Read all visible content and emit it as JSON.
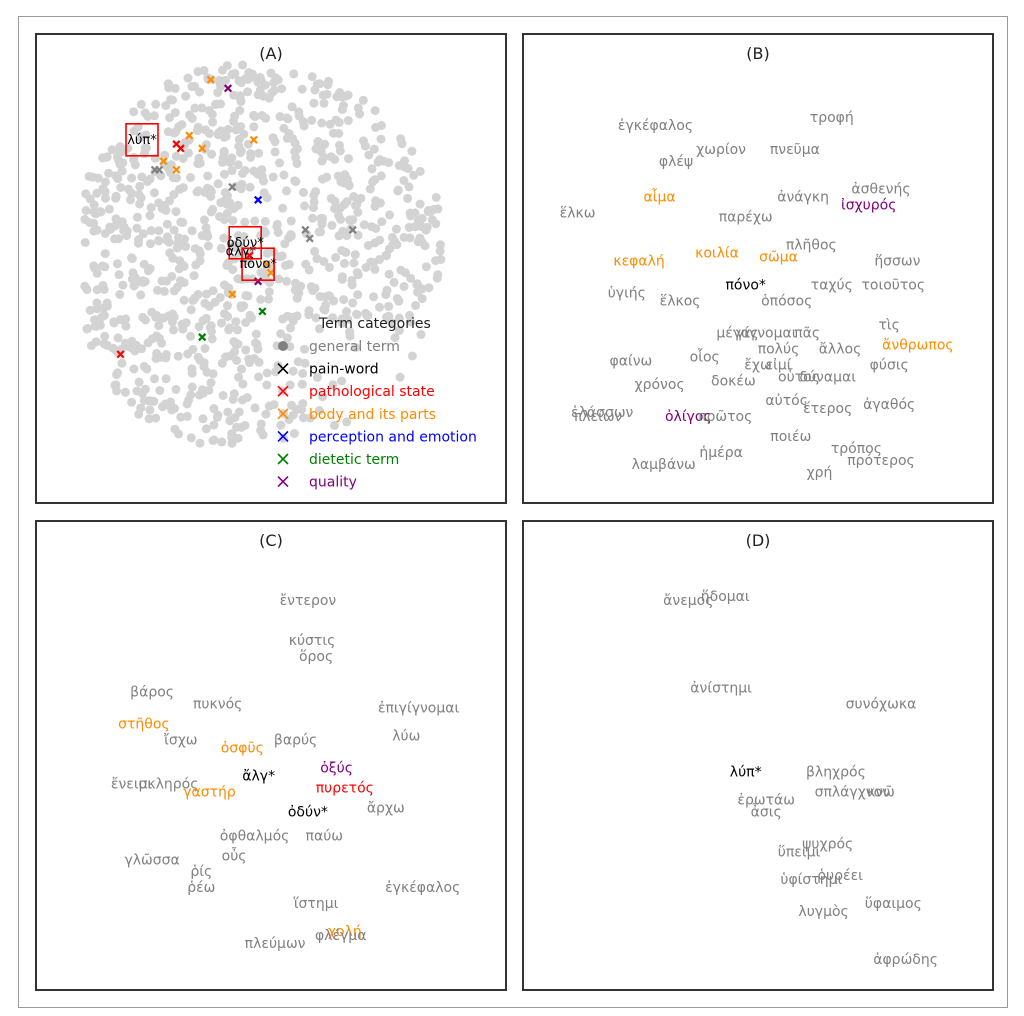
{
  "colors": {
    "general": "#808080",
    "pain": "#000000",
    "pathological": "#ff0000",
    "body": "#ff8c00",
    "perception": "#0000ff",
    "dietetic": "#008000",
    "quality": "#800080",
    "cloud": "#d3d3d3"
  },
  "chart_data": [
    {
      "panel": "A",
      "type": "scatter",
      "title": "(A)",
      "legend": {
        "title": "Term categories",
        "placement": "bottom-right",
        "entries": [
          {
            "key": "general",
            "label": "general term",
            "marker": "circle"
          },
          {
            "key": "pain",
            "label": "pain-word",
            "marker": "x"
          },
          {
            "key": "pathological",
            "label": "pathological state",
            "marker": "x"
          },
          {
            "key": "body",
            "label": "body and its parts",
            "marker": "x"
          },
          {
            "key": "perception",
            "label": "perception and emotion",
            "marker": "x"
          },
          {
            "key": "dietetic",
            "label": "dietetic term",
            "marker": "x"
          },
          {
            "key": "quality",
            "label": "quality",
            "marker": "x"
          }
        ]
      },
      "zoom_labels": [
        {
          "text": "λύπ*",
          "x": 0.2,
          "y": 0.8
        },
        {
          "text": "ὀδύν*",
          "x": 0.44,
          "y": 0.56
        },
        {
          "text": "ἄλγ*",
          "x": 0.43,
          "y": 0.54
        },
        {
          "text": "πόνο*",
          "x": 0.47,
          "y": 0.51
        }
      ],
      "marked_points": [
        {
          "cat": "quality",
          "x": 0.4,
          "y": 0.92
        },
        {
          "cat": "body",
          "x": 0.36,
          "y": 0.94
        },
        {
          "cat": "body",
          "x": 0.31,
          "y": 0.81
        },
        {
          "cat": "pathological",
          "x": 0.28,
          "y": 0.79
        },
        {
          "cat": "pathological",
          "x": 0.29,
          "y": 0.78
        },
        {
          "cat": "body",
          "x": 0.34,
          "y": 0.78
        },
        {
          "cat": "body",
          "x": 0.46,
          "y": 0.8
        },
        {
          "cat": "body",
          "x": 0.25,
          "y": 0.75
        },
        {
          "cat": "body",
          "x": 0.28,
          "y": 0.73
        },
        {
          "cat": "general",
          "x": 0.24,
          "y": 0.73
        },
        {
          "cat": "general",
          "x": 0.23,
          "y": 0.73
        },
        {
          "cat": "general",
          "x": 0.41,
          "y": 0.69
        },
        {
          "cat": "perception",
          "x": 0.47,
          "y": 0.66
        },
        {
          "cat": "general",
          "x": 0.58,
          "y": 0.59
        },
        {
          "cat": "general",
          "x": 0.59,
          "y": 0.57
        },
        {
          "cat": "general",
          "x": 0.69,
          "y": 0.59
        },
        {
          "cat": "pathological",
          "x": 0.45,
          "y": 0.53
        },
        {
          "cat": "body",
          "x": 0.49,
          "y": 0.51
        },
        {
          "cat": "body",
          "x": 0.5,
          "y": 0.49
        },
        {
          "cat": "quality",
          "x": 0.47,
          "y": 0.47
        },
        {
          "cat": "body",
          "x": 0.41,
          "y": 0.44
        },
        {
          "cat": "dietetic",
          "x": 0.48,
          "y": 0.4
        },
        {
          "cat": "dietetic",
          "x": 0.34,
          "y": 0.34
        },
        {
          "cat": "pathological",
          "x": 0.15,
          "y": 0.3
        }
      ]
    },
    {
      "panel": "B",
      "type": "scatter",
      "title": "(B)",
      "points": [
        {
          "text": "τροφή",
          "cat": "general",
          "x": 0.68,
          "y": 0.91
        },
        {
          "text": "ἐγκέφαλος",
          "cat": "general",
          "x": 0.25,
          "y": 0.89
        },
        {
          "text": "πνεῦμα",
          "cat": "general",
          "x": 0.59,
          "y": 0.83
        },
        {
          "text": "χωρίον",
          "cat": "general",
          "x": 0.41,
          "y": 0.83
        },
        {
          "text": "φλέψ",
          "cat": "general",
          "x": 0.3,
          "y": 0.8
        },
        {
          "text": "ἀσθενής",
          "cat": "general",
          "x": 0.8,
          "y": 0.73
        },
        {
          "text": "ἀνάγκη",
          "cat": "general",
          "x": 0.61,
          "y": 0.71
        },
        {
          "text": "αἷμα",
          "cat": "body",
          "x": 0.26,
          "y": 0.71
        },
        {
          "text": "ἰσχυρός",
          "cat": "quality",
          "x": 0.77,
          "y": 0.69
        },
        {
          "text": "ἕλκω",
          "cat": "general",
          "x": 0.06,
          "y": 0.67
        },
        {
          "text": "παρέχω",
          "cat": "general",
          "x": 0.47,
          "y": 0.66
        },
        {
          "text": "πλῆθος",
          "cat": "general",
          "x": 0.63,
          "y": 0.59
        },
        {
          "text": "κοιλία",
          "cat": "body",
          "x": 0.4,
          "y": 0.57
        },
        {
          "text": "σῶμα",
          "cat": "body",
          "x": 0.55,
          "y": 0.56
        },
        {
          "text": "κεφαλή",
          "cat": "body",
          "x": 0.21,
          "y": 0.55
        },
        {
          "text": "ἥσσων",
          "cat": "general",
          "x": 0.84,
          "y": 0.55
        },
        {
          "text": "πόνο*",
          "cat": "pain",
          "x": 0.47,
          "y": 0.49
        },
        {
          "text": "ταχύς",
          "cat": "general",
          "x": 0.68,
          "y": 0.49
        },
        {
          "text": "τοιοῦτος",
          "cat": "general",
          "x": 0.83,
          "y": 0.49
        },
        {
          "text": "ὑγιής",
          "cat": "general",
          "x": 0.18,
          "y": 0.47
        },
        {
          "text": "ἕλκος",
          "cat": "general",
          "x": 0.31,
          "y": 0.45
        },
        {
          "text": "ὁπόσος",
          "cat": "general",
          "x": 0.57,
          "y": 0.45
        },
        {
          "text": "τὶς",
          "cat": "general",
          "x": 0.82,
          "y": 0.39
        },
        {
          "text": "μέγας",
          "cat": "general",
          "x": 0.45,
          "y": 0.37
        },
        {
          "text": "γίγνομαι",
          "cat": "general",
          "x": 0.52,
          "y": 0.37
        },
        {
          "text": "πᾶς",
          "cat": "general",
          "x": 0.62,
          "y": 0.37
        },
        {
          "text": "ἄνθρωπος",
          "cat": "body",
          "x": 0.89,
          "y": 0.34
        },
        {
          "text": "πολύς",
          "cat": "general",
          "x": 0.55,
          "y": 0.33
        },
        {
          "text": "ἄλλος",
          "cat": "general",
          "x": 0.7,
          "y": 0.33
        },
        {
          "text": "οἷος",
          "cat": "general",
          "x": 0.37,
          "y": 0.31
        },
        {
          "text": "φαίνω",
          "cat": "general",
          "x": 0.19,
          "y": 0.3
        },
        {
          "text": "ἔχω",
          "cat": "general",
          "x": 0.5,
          "y": 0.29
        },
        {
          "text": "εἰμί",
          "cat": "general",
          "x": 0.55,
          "y": 0.29
        },
        {
          "text": "φύσις",
          "cat": "general",
          "x": 0.82,
          "y": 0.29
        },
        {
          "text": "οὗτος",
          "cat": "general",
          "x": 0.6,
          "y": 0.26
        },
        {
          "text": "δύναμαι",
          "cat": "general",
          "x": 0.67,
          "y": 0.26
        },
        {
          "text": "δοκέω",
          "cat": "general",
          "x": 0.44,
          "y": 0.25
        },
        {
          "text": "χρόνος",
          "cat": "general",
          "x": 0.26,
          "y": 0.24
        },
        {
          "text": "αὐτός",
          "cat": "general",
          "x": 0.57,
          "y": 0.2
        },
        {
          "text": "ἀγαθός",
          "cat": "general",
          "x": 0.82,
          "y": 0.19
        },
        {
          "text": "ἕτερος",
          "cat": "general",
          "x": 0.67,
          "y": 0.18
        },
        {
          "text": "ἐλάσσων",
          "cat": "general",
          "x": 0.12,
          "y": 0.17
        },
        {
          "text": "πλείων",
          "cat": "general",
          "x": 0.11,
          "y": 0.16
        },
        {
          "text": "ὀλίγος",
          "cat": "quality",
          "x": 0.33,
          "y": 0.16
        },
        {
          "text": "πρῶτος",
          "cat": "general",
          "x": 0.42,
          "y": 0.16
        },
        {
          "text": "ποιέω",
          "cat": "general",
          "x": 0.58,
          "y": 0.11
        },
        {
          "text": "ἡμέρα",
          "cat": "general",
          "x": 0.41,
          "y": 0.07
        },
        {
          "text": "τρόπος",
          "cat": "general",
          "x": 0.74,
          "y": 0.08
        },
        {
          "text": "πρότερος",
          "cat": "general",
          "x": 0.8,
          "y": 0.05
        },
        {
          "text": "λαμβάνω",
          "cat": "general",
          "x": 0.27,
          "y": 0.04
        },
        {
          "text": "χρή",
          "cat": "general",
          "x": 0.65,
          "y": 0.02
        }
      ]
    },
    {
      "panel": "C",
      "type": "scatter",
      "title": "(C)",
      "points": [
        {
          "text": "ἔντερον",
          "cat": "general",
          "x": 0.59,
          "y": 0.92
        },
        {
          "text": "κύστις",
          "cat": "general",
          "x": 0.6,
          "y": 0.82
        },
        {
          "text": "ὅρος",
          "cat": "general",
          "x": 0.61,
          "y": 0.78
        },
        {
          "text": "βάρος",
          "cat": "general",
          "x": 0.21,
          "y": 0.69
        },
        {
          "text": "πυκνός",
          "cat": "general",
          "x": 0.37,
          "y": 0.66
        },
        {
          "text": "ἐπιγίγνομαι",
          "cat": "general",
          "x": 0.86,
          "y": 0.65
        },
        {
          "text": "στῆθος",
          "cat": "body",
          "x": 0.19,
          "y": 0.61
        },
        {
          "text": "λύω",
          "cat": "general",
          "x": 0.83,
          "y": 0.58
        },
        {
          "text": "ἴσχω",
          "cat": "general",
          "x": 0.28,
          "y": 0.57
        },
        {
          "text": "βαρύς",
          "cat": "general",
          "x": 0.56,
          "y": 0.57
        },
        {
          "text": "ὀσφῦς",
          "cat": "body",
          "x": 0.43,
          "y": 0.55
        },
        {
          "text": "ὀξύς",
          "cat": "quality",
          "x": 0.66,
          "y": 0.5
        },
        {
          "text": "ἄλγ*",
          "cat": "pain",
          "x": 0.47,
          "y": 0.48
        },
        {
          "text": "πυρετός",
          "cat": "pathological",
          "x": 0.68,
          "y": 0.45
        },
        {
          "text": "ἔνειμι",
          "cat": "general",
          "x": 0.16,
          "y": 0.46
        },
        {
          "text": "σκληρός",
          "cat": "general",
          "x": 0.25,
          "y": 0.46
        },
        {
          "text": "γαστήρ",
          "cat": "body",
          "x": 0.35,
          "y": 0.44
        },
        {
          "text": "ἄρχω",
          "cat": "general",
          "x": 0.78,
          "y": 0.4
        },
        {
          "text": "ὀδύν*",
          "cat": "pain",
          "x": 0.59,
          "y": 0.39
        },
        {
          "text": "ὀφθαλμός",
          "cat": "general",
          "x": 0.46,
          "y": 0.33
        },
        {
          "text": "παύω",
          "cat": "general",
          "x": 0.63,
          "y": 0.33
        },
        {
          "text": "οὖς",
          "cat": "general",
          "x": 0.41,
          "y": 0.28
        },
        {
          "text": "γλῶσσα",
          "cat": "general",
          "x": 0.21,
          "y": 0.27
        },
        {
          "text": "ῥίς",
          "cat": "general",
          "x": 0.33,
          "y": 0.24
        },
        {
          "text": "ῥέω",
          "cat": "general",
          "x": 0.33,
          "y": 0.2
        },
        {
          "text": "ἐγκέφαλος",
          "cat": "general",
          "x": 0.87,
          "y": 0.2
        },
        {
          "text": "ἵστημι",
          "cat": "general",
          "x": 0.61,
          "y": 0.16
        },
        {
          "text": "χολή",
          "cat": "body",
          "x": 0.68,
          "y": 0.09
        },
        {
          "text": "πλεύμων",
          "cat": "general",
          "x": 0.51,
          "y": 0.06
        },
        {
          "text": "φλέγμα",
          "cat": "general",
          "x": 0.67,
          "y": 0.08
        }
      ]
    },
    {
      "panel": "D",
      "type": "scatter",
      "title": "(D)",
      "points": [
        {
          "text": "ἄνεμος",
          "cat": "general",
          "x": 0.33,
          "y": 0.92
        },
        {
          "text": "ἥδομαι",
          "cat": "general",
          "x": 0.42,
          "y": 0.93
        },
        {
          "text": "ἀνίστημι",
          "cat": "general",
          "x": 0.41,
          "y": 0.7
        },
        {
          "text": "συνόχωκα",
          "cat": "general",
          "x": 0.8,
          "y": 0.66
        },
        {
          "text": "λύπ*",
          "cat": "pain",
          "x": 0.47,
          "y": 0.49
        },
        {
          "text": "βληχρός",
          "cat": "general",
          "x": 0.69,
          "y": 0.49
        },
        {
          "text": "σπλάγχνον",
          "cat": "general",
          "x": 0.73,
          "y": 0.44
        },
        {
          "text": "κνῶ",
          "cat": "general",
          "x": 0.8,
          "y": 0.44
        },
        {
          "text": "ἐρωτάω",
          "cat": "general",
          "x": 0.52,
          "y": 0.42
        },
        {
          "text": "ἆσις",
          "cat": "general",
          "x": 0.52,
          "y": 0.39
        },
        {
          "text": "ψυχρός",
          "cat": "general",
          "x": 0.67,
          "y": 0.31
        },
        {
          "text": "ὕπειμι",
          "cat": "general",
          "x": 0.6,
          "y": 0.29
        },
        {
          "text": "ὑφίστημι",
          "cat": "general",
          "x": 0.63,
          "y": 0.22
        },
        {
          "text": "ῥυρέει",
          "cat": "general",
          "x": 0.7,
          "y": 0.23
        },
        {
          "text": "ὕφαιμος",
          "cat": "general",
          "x": 0.83,
          "y": 0.16
        },
        {
          "text": "λυγμὸς",
          "cat": "general",
          "x": 0.66,
          "y": 0.14
        },
        {
          "text": "ἀφρώδης",
          "cat": "general",
          "x": 0.86,
          "y": 0.02
        }
      ]
    }
  ]
}
